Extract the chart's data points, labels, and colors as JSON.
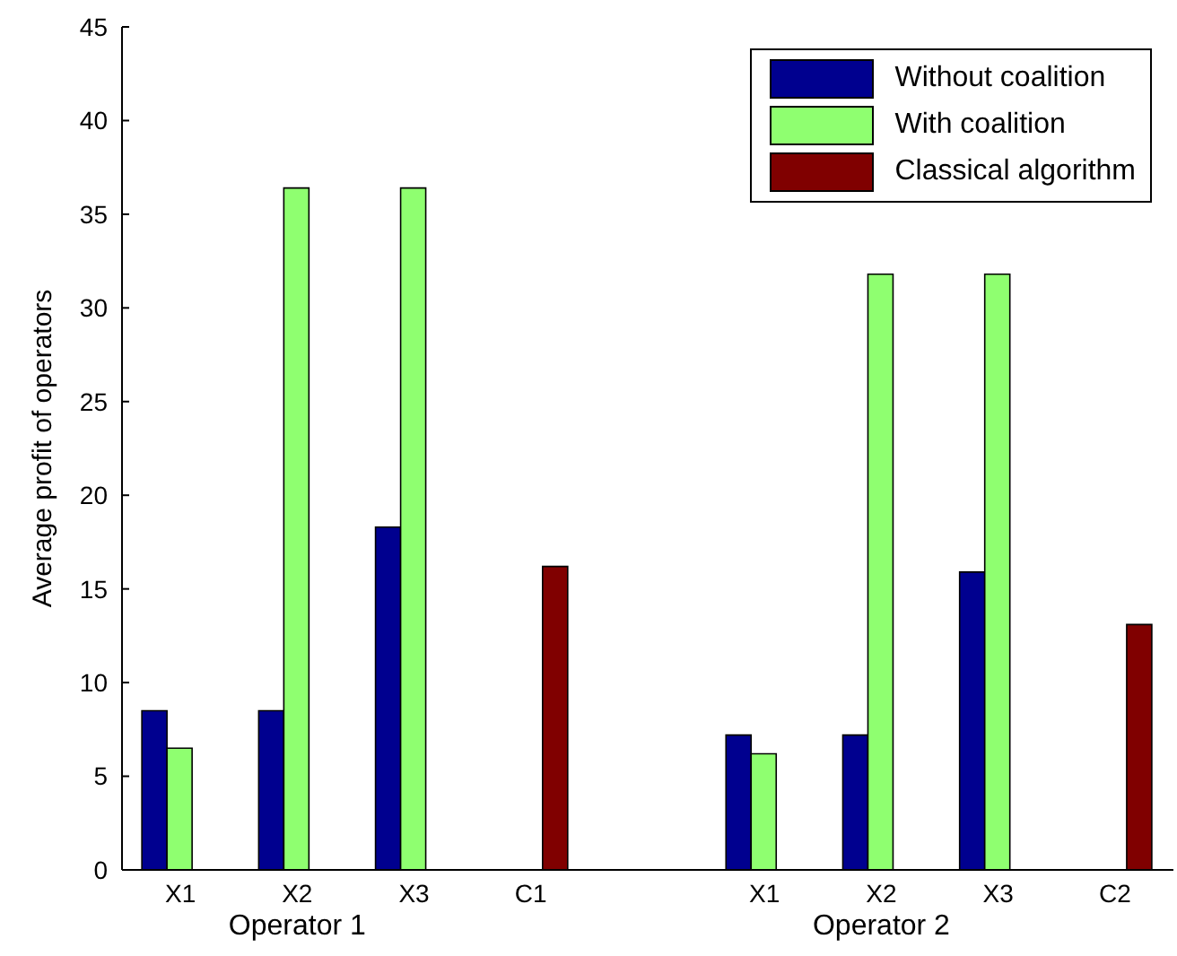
{
  "chart_data": {
    "type": "bar",
    "ylabel": "Average profit of operators",
    "categories": [
      "X1",
      "X2",
      "X3",
      "C1",
      null,
      "X1",
      "X2",
      "X3",
      "C2"
    ],
    "series": [
      {
        "name": "Without coalition",
        "color": "#00008f",
        "values": [
          8.5,
          8.5,
          18.3,
          0,
          0,
          7.2,
          7.2,
          15.9,
          0
        ]
      },
      {
        "name": "With coalition",
        "color": "#8fff70",
        "values": [
          6.5,
          36.4,
          36.4,
          0,
          0,
          6.2,
          31.8,
          31.8,
          0
        ]
      },
      {
        "name": "Classical algorithm",
        "color": "#800000",
        "values": [
          0,
          0,
          0,
          16.2,
          0,
          0,
          0,
          0,
          13.1
        ]
      }
    ],
    "ylim": [
      0,
      45
    ],
    "yticks": [
      0,
      5,
      10,
      15,
      20,
      25,
      30,
      35,
      40,
      45
    ],
    "grid": false,
    "legend": "top right",
    "annotations": [
      "Operator 1",
      "Operator 2"
    ]
  }
}
